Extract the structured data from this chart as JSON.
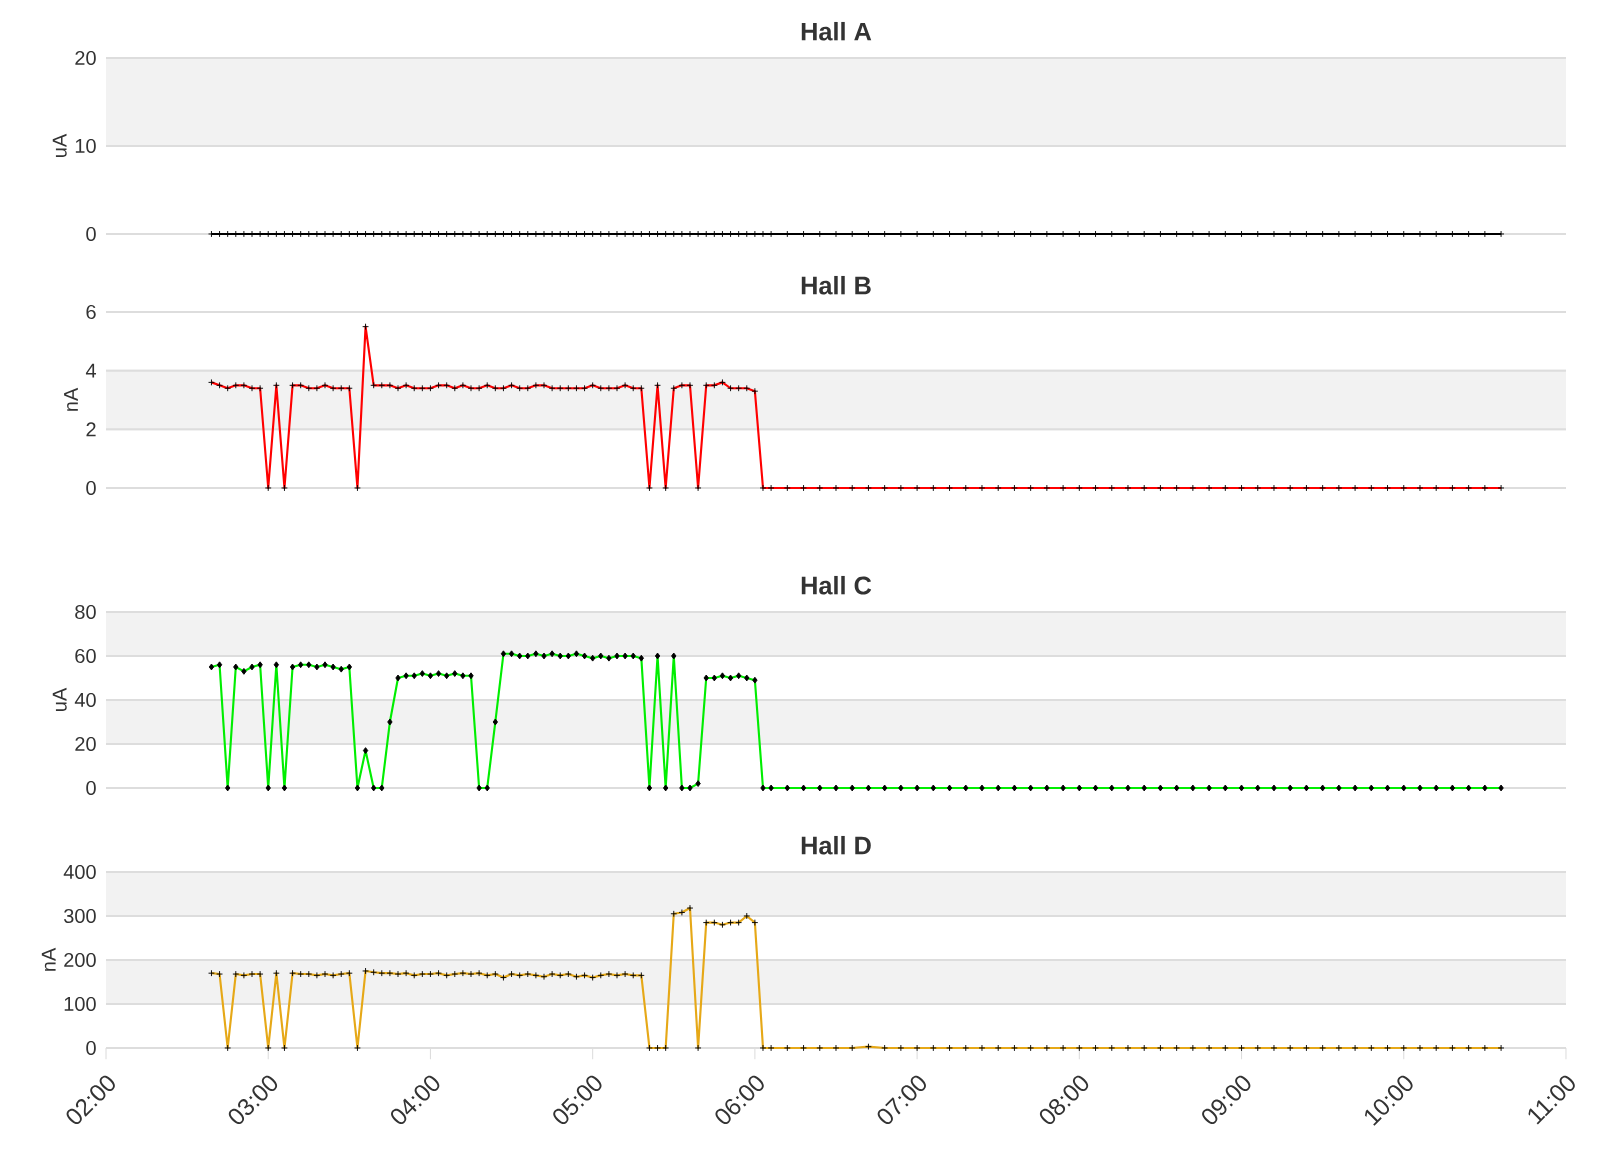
{
  "chart_data": [
    {
      "type": "line",
      "title": "Hall A",
      "ylabel": "uA",
      "xlim": [
        2,
        11
      ],
      "ylim": [
        0,
        20
      ],
      "yticks": [
        0,
        10,
        20
      ],
      "grid": "y",
      "bands": [
        {
          "axis": "y",
          "from": 10,
          "to": 20,
          "color": "#f2f2f2"
        }
      ],
      "tick_labels": "y",
      "marker": "cross",
      "line_style": "solid",
      "x": [
        2.65,
        2.7,
        2.75,
        2.8,
        2.85,
        2.9,
        2.95,
        3,
        3.05,
        3.1,
        3.15,
        3.2,
        3.25,
        3.3,
        3.35,
        3.4,
        3.45,
        3.5,
        3.55,
        3.6,
        3.65,
        3.7,
        3.75,
        3.8,
        3.85,
        3.9,
        3.95,
        4,
        4.05,
        4.1,
        4.15,
        4.2,
        4.25,
        4.3,
        4.35,
        4.4,
        4.45,
        4.5,
        4.55,
        4.6,
        4.65,
        4.7,
        4.75,
        4.8,
        4.85,
        4.9,
        4.95,
        5,
        5.05,
        5.1,
        5.15,
        5.2,
        5.25,
        5.3,
        5.35,
        5.4,
        5.45,
        5.5,
        5.55,
        5.6,
        5.65,
        5.7,
        5.75,
        5.8,
        5.85,
        5.9,
        5.95,
        6,
        6.05,
        6.1,
        6.2,
        6.3,
        6.4,
        6.5,
        6.6,
        6.7,
        6.8,
        6.9,
        7,
        7.1,
        7.2,
        7.3,
        7.4,
        7.5,
        7.6,
        7.7,
        7.8,
        7.9,
        8,
        8.1,
        8.2,
        8.3,
        8.4,
        8.5,
        8.6,
        8.7,
        8.8,
        8.9,
        9,
        9.1,
        9.2,
        9.3,
        9.4,
        9.5,
        9.6,
        9.7,
        9.8,
        9.9,
        10,
        10.1,
        10.2,
        10.3,
        10.4,
        10.5,
        10.6
      ],
      "series": [
        {
          "color": "#000000",
          "values": [
            0,
            0,
            0,
            0,
            0,
            0,
            0,
            0,
            0,
            0,
            0,
            0,
            0,
            0,
            0,
            0,
            0,
            0,
            0,
            0,
            0,
            0,
            0,
            0,
            0,
            0,
            0,
            0,
            0,
            0,
            0,
            0,
            0,
            0,
            0,
            0,
            0,
            0,
            0,
            0,
            0,
            0,
            0,
            0,
            0,
            0,
            0,
            0,
            0,
            0,
            0,
            0,
            0,
            0,
            0,
            0,
            0,
            0,
            0,
            0,
            0,
            0,
            0,
            0,
            0,
            0,
            0,
            0,
            0,
            0,
            0,
            0,
            0,
            0,
            0,
            0,
            0,
            0,
            0,
            0,
            0,
            0,
            0,
            0,
            0,
            0,
            0,
            0,
            0,
            0,
            0,
            0,
            0,
            0,
            0,
            0,
            0,
            0,
            0,
            0,
            0,
            0,
            0,
            0,
            0,
            0,
            0,
            0,
            0,
            0,
            0,
            0,
            0,
            0,
            0
          ]
        }
      ]
    },
    {
      "type": "line",
      "title": "Hall B",
      "ylabel": "nA",
      "xlim": [
        2,
        11
      ],
      "ylim": [
        0,
        6
      ],
      "yticks": [
        0,
        2,
        4,
        6
      ],
      "grid": "y",
      "bands": [
        {
          "axis": "y",
          "from": 2,
          "to": 4,
          "color": "#f2f2f2"
        }
      ],
      "tick_labels": "y",
      "marker": "cross",
      "line_style": "solid",
      "x": [
        2.65,
        2.7,
        2.75,
        2.8,
        2.85,
        2.9,
        2.95,
        3,
        3.05,
        3.1,
        3.15,
        3.2,
        3.25,
        3.3,
        3.35,
        3.4,
        3.45,
        3.5,
        3.55,
        3.6,
        3.65,
        3.7,
        3.75,
        3.8,
        3.85,
        3.9,
        3.95,
        4,
        4.05,
        4.1,
        4.15,
        4.2,
        4.25,
        4.3,
        4.35,
        4.4,
        4.45,
        4.5,
        4.55,
        4.6,
        4.65,
        4.7,
        4.75,
        4.8,
        4.85,
        4.9,
        4.95,
        5,
        5.05,
        5.1,
        5.15,
        5.2,
        5.25,
        5.3,
        5.35,
        5.4,
        5.45,
        5.5,
        5.55,
        5.6,
        5.65,
        5.7,
        5.75,
        5.8,
        5.85,
        5.9,
        5.95,
        6,
        6.05,
        6.1,
        6.2,
        6.3,
        6.4,
        6.5,
        6.6,
        6.7,
        6.8,
        6.9,
        7,
        7.1,
        7.2,
        7.3,
        7.4,
        7.5,
        7.6,
        7.7,
        7.8,
        7.9,
        8,
        8.1,
        8.2,
        8.3,
        8.4,
        8.5,
        8.6,
        8.7,
        8.8,
        8.9,
        9,
        9.1,
        9.2,
        9.3,
        9.4,
        9.5,
        9.6,
        9.7,
        9.8,
        9.9,
        10,
        10.1,
        10.2,
        10.3,
        10.4,
        10.5,
        10.6
      ],
      "series": [
        {
          "color": "#ff0000",
          "values": [
            3.6,
            3.5,
            3.4,
            3.5,
            3.5,
            3.4,
            3.4,
            0,
            3.5,
            0,
            3.5,
            3.5,
            3.4,
            3.4,
            3.5,
            3.4,
            3.4,
            3.4,
            0,
            5.5,
            3.5,
            3.5,
            3.5,
            3.4,
            3.5,
            3.4,
            3.4,
            3.4,
            3.5,
            3.5,
            3.4,
            3.5,
            3.4,
            3.4,
            3.5,
            3.4,
            3.4,
            3.5,
            3.4,
            3.4,
            3.5,
            3.5,
            3.4,
            3.4,
            3.4,
            3.4,
            3.4,
            3.5,
            3.4,
            3.4,
            3.4,
            3.5,
            3.4,
            3.4,
            0,
            3.5,
            0,
            3.4,
            3.5,
            3.5,
            0,
            3.5,
            3.5,
            3.6,
            3.4,
            3.4,
            3.4,
            3.3,
            0,
            0,
            0,
            0,
            0,
            0,
            0,
            0,
            0,
            0,
            0,
            0,
            0,
            0,
            0,
            0,
            0,
            0,
            0,
            0,
            0,
            0,
            0,
            0,
            0,
            0,
            0,
            0,
            0,
            0,
            0,
            0,
            0,
            0,
            0,
            0,
            0,
            0,
            0,
            0,
            0,
            0,
            0,
            0,
            0,
            0,
            0
          ]
        }
      ]
    },
    {
      "type": "line",
      "title": "Hall C",
      "ylabel": "uA",
      "xlim": [
        2,
        11
      ],
      "ylim": [
        0,
        80
      ],
      "yticks": [
        0,
        20,
        40,
        60,
        80
      ],
      "grid": "y",
      "bands": [
        {
          "axis": "y",
          "from": 20,
          "to": 40,
          "color": "#f2f2f2"
        },
        {
          "axis": "y",
          "from": 60,
          "to": 80,
          "color": "#f2f2f2"
        }
      ],
      "tick_labels": "y",
      "marker": "diamond",
      "line_style": "solid",
      "x": [
        2.65,
        2.7,
        2.75,
        2.8,
        2.85,
        2.9,
        2.95,
        3,
        3.05,
        3.1,
        3.15,
        3.2,
        3.25,
        3.3,
        3.35,
        3.4,
        3.45,
        3.5,
        3.55,
        3.6,
        3.65,
        3.7,
        3.75,
        3.8,
        3.85,
        3.9,
        3.95,
        4,
        4.05,
        4.1,
        4.15,
        4.2,
        4.25,
        4.3,
        4.35,
        4.4,
        4.45,
        4.5,
        4.55,
        4.6,
        4.65,
        4.7,
        4.75,
        4.8,
        4.85,
        4.9,
        4.95,
        5,
        5.05,
        5.1,
        5.15,
        5.2,
        5.25,
        5.3,
        5.35,
        5.4,
        5.45,
        5.5,
        5.55,
        5.6,
        5.65,
        5.7,
        5.75,
        5.8,
        5.85,
        5.9,
        5.95,
        6,
        6.05,
        6.1,
        6.2,
        6.3,
        6.4,
        6.5,
        6.6,
        6.7,
        6.8,
        6.9,
        7,
        7.1,
        7.2,
        7.3,
        7.4,
        7.5,
        7.6,
        7.7,
        7.8,
        7.9,
        8,
        8.1,
        8.2,
        8.3,
        8.4,
        8.5,
        8.6,
        8.7,
        8.8,
        8.9,
        9,
        9.1,
        9.2,
        9.3,
        9.4,
        9.5,
        9.6,
        9.7,
        9.8,
        9.9,
        10,
        10.1,
        10.2,
        10.3,
        10.4,
        10.5,
        10.6
      ],
      "series": [
        {
          "color": "#00ee00",
          "values": [
            55,
            56,
            0,
            55,
            53,
            55,
            56,
            0,
            56,
            0,
            55,
            56,
            56,
            55,
            56,
            55,
            54,
            55,
            0,
            17,
            0,
            0,
            30,
            50,
            51,
            51,
            52,
            51,
            52,
            51,
            52,
            51,
            51,
            0,
            0,
            30,
            61,
            61,
            60,
            60,
            61,
            60,
            61,
            60,
            60,
            61,
            60,
            59,
            60,
            59,
            60,
            60,
            60,
            59,
            0,
            60,
            0,
            60,
            0,
            0,
            2,
            50,
            50,
            51,
            50,
            51,
            50,
            49,
            0,
            0,
            0,
            0,
            0,
            0,
            0,
            0,
            0,
            0,
            0,
            0,
            0,
            0,
            0,
            0,
            0,
            0,
            0,
            0,
            0,
            0,
            0,
            0,
            0,
            0,
            0,
            0,
            0,
            0,
            0,
            0,
            0,
            0,
            0,
            0,
            0,
            0,
            0,
            0,
            0,
            0,
            0,
            0,
            0,
            0,
            0
          ]
        }
      ]
    },
    {
      "type": "line",
      "title": "Hall D",
      "ylabel": "nA",
      "xlim": [
        2,
        11
      ],
      "ylim": [
        0,
        400
      ],
      "yticks": [
        0,
        100,
        200,
        300,
        400
      ],
      "grid": "y",
      "bands": [
        {
          "axis": "y",
          "from": 100,
          "to": 200,
          "color": "#f2f2f2"
        },
        {
          "axis": "y",
          "from": 300,
          "to": 400,
          "color": "#f2f2f2"
        }
      ],
      "marker": "cross",
      "line_style": "solid",
      "xticks": [
        {
          "value": 2,
          "label": "02:00"
        },
        {
          "value": 3,
          "label": "03:00"
        },
        {
          "value": 4,
          "label": "04:00"
        },
        {
          "value": 5,
          "label": "05:00"
        },
        {
          "value": 6,
          "label": "06:00"
        },
        {
          "value": 7,
          "label": "07:00"
        },
        {
          "value": 8,
          "label": "08:00"
        },
        {
          "value": 9,
          "label": "09:00"
        },
        {
          "value": 10,
          "label": "10:00"
        },
        {
          "value": 11,
          "label": "11:00"
        }
      ],
      "x": [
        2.65,
        2.7,
        2.75,
        2.8,
        2.85,
        2.9,
        2.95,
        3,
        3.05,
        3.1,
        3.15,
        3.2,
        3.25,
        3.3,
        3.35,
        3.4,
        3.45,
        3.5,
        3.55,
        3.6,
        3.65,
        3.7,
        3.75,
        3.8,
        3.85,
        3.9,
        3.95,
        4,
        4.05,
        4.1,
        4.15,
        4.2,
        4.25,
        4.3,
        4.35,
        4.4,
        4.45,
        4.5,
        4.55,
        4.6,
        4.65,
        4.7,
        4.75,
        4.8,
        4.85,
        4.9,
        4.95,
        5,
        5.05,
        5.1,
        5.15,
        5.2,
        5.25,
        5.3,
        5.35,
        5.4,
        5.45,
        5.5,
        5.55,
        5.6,
        5.65,
        5.7,
        5.75,
        5.8,
        5.85,
        5.9,
        5.95,
        6,
        6.05,
        6.1,
        6.2,
        6.3,
        6.4,
        6.5,
        6.6,
        6.7,
        6.8,
        6.9,
        7,
        7.1,
        7.2,
        7.3,
        7.4,
        7.5,
        7.6,
        7.7,
        7.8,
        7.9,
        8,
        8.1,
        8.2,
        8.3,
        8.4,
        8.5,
        8.6,
        8.7,
        8.8,
        8.9,
        9,
        9.1,
        9.2,
        9.3,
        9.4,
        9.5,
        9.6,
        9.7,
        9.8,
        9.9,
        10,
        10.1,
        10.2,
        10.3,
        10.4,
        10.5,
        10.6
      ],
      "series": [
        {
          "color": "#e6a817",
          "values": [
            170,
            168,
            0,
            168,
            165,
            168,
            168,
            0,
            170,
            0,
            170,
            168,
            168,
            165,
            168,
            165,
            168,
            170,
            0,
            175,
            172,
            170,
            170,
            168,
            170,
            165,
            168,
            168,
            170,
            165,
            168,
            170,
            168,
            170,
            165,
            168,
            160,
            168,
            165,
            168,
            165,
            162,
            168,
            165,
            168,
            162,
            165,
            160,
            165,
            168,
            165,
            168,
            165,
            165,
            0,
            0,
            0,
            305,
            308,
            318,
            0,
            285,
            285,
            280,
            285,
            285,
            300,
            285,
            0,
            0,
            0,
            0,
            0,
            0,
            0,
            3,
            0,
            0,
            0,
            0,
            0,
            0,
            0,
            0,
            0,
            0,
            0,
            0,
            0,
            0,
            0,
            0,
            0,
            0,
            0,
            0,
            0,
            0,
            0,
            0,
            0,
            0,
            0,
            0,
            0,
            0,
            0,
            0,
            0,
            0,
            0,
            0,
            0,
            0,
            0
          ]
        }
      ]
    }
  ]
}
